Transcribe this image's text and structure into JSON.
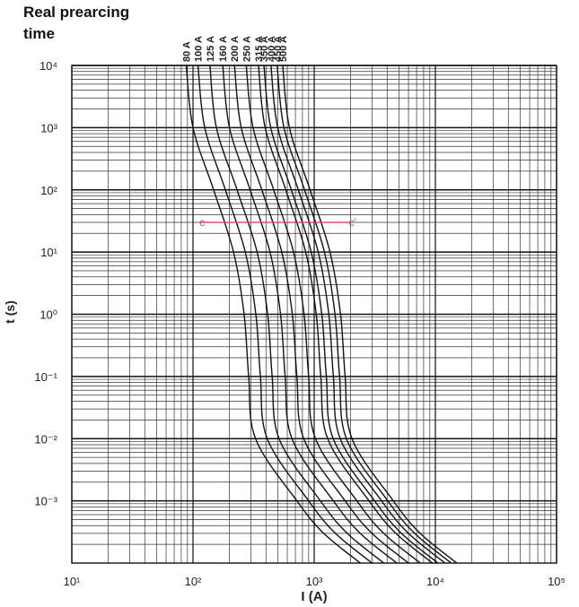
{
  "chart_data": {
    "type": "line",
    "title": "Real prearcing time",
    "xlabel": "I (A)",
    "ylabel": "t (s)",
    "xscale": "log",
    "yscale": "log",
    "grid": "minor",
    "xlim": [
      10,
      100000
    ],
    "xticks": [
      {
        "value": 10,
        "label": "10¹"
      },
      {
        "value": 100,
        "label": "10²"
      },
      {
        "value": 1000,
        "label": "10³"
      },
      {
        "value": 10000,
        "label": "10⁴"
      },
      {
        "value": 100000,
        "label": "10⁵"
      }
    ],
    "ylim": [
      0.0001,
      10000
    ],
    "yticks": [
      {
        "value": 0.001,
        "label": "10⁻³"
      },
      {
        "value": 0.01,
        "label": "10⁻²"
      },
      {
        "value": 0.1,
        "label": "10⁻¹"
      },
      {
        "value": 1,
        "label": "10⁰"
      },
      {
        "value": 10,
        "label": "10¹"
      },
      {
        "value": 100,
        "label": "10²"
      },
      {
        "value": 1000,
        "label": "10³"
      },
      {
        "value": 10000,
        "label": "10⁴"
      }
    ],
    "series": [
      {
        "name": "80 A",
        "color": "#111111",
        "x": [
          88,
          100,
          148,
          216,
          264,
          288,
          328,
          720,
          1200,
          2400
        ],
        "values": [
          10000,
          1000,
          100,
          10,
          1,
          0.1,
          0.01,
          0.001,
          0.0003,
          0.0001
        ]
      },
      {
        "name": "100 A",
        "color": "#111111",
        "x": [
          110,
          125,
          185,
          270,
          330,
          360,
          410,
          900,
          1500,
          3000
        ],
        "values": [
          10000,
          1000,
          100,
          10,
          1,
          0.1,
          0.01,
          0.001,
          0.0003,
          0.0001
        ]
      },
      {
        "name": "125 A",
        "color": "#111111",
        "x": [
          138,
          156,
          231,
          338,
          413,
          450,
          513,
          1125,
          1875,
          3750
        ],
        "values": [
          10000,
          1000,
          100,
          10,
          1,
          0.1,
          0.01,
          0.001,
          0.0003,
          0.0001
        ]
      },
      {
        "name": "160 A",
        "color": "#111111",
        "x": [
          176,
          200,
          296,
          432,
          528,
          576,
          656,
          1440,
          2400,
          4800
        ],
        "values": [
          10000,
          1000,
          100,
          10,
          1,
          0.1,
          0.01,
          0.001,
          0.0003,
          0.0001
        ]
      },
      {
        "name": "200 A",
        "color": "#111111",
        "x": [
          220,
          250,
          370,
          540,
          660,
          720,
          820,
          1800,
          3000,
          6000
        ],
        "values": [
          10000,
          1000,
          100,
          10,
          1,
          0.1,
          0.01,
          0.001,
          0.0003,
          0.0001
        ]
      },
      {
        "name": "250 A",
        "color": "#111111",
        "x": [
          275,
          313,
          463,
          675,
          825,
          900,
          1025,
          2250,
          3750,
          7500
        ],
        "values": [
          10000,
          1000,
          100,
          10,
          1,
          0.1,
          0.01,
          0.001,
          0.0003,
          0.0001
        ]
      },
      {
        "name": "315 A",
        "color": "#111111",
        "x": [
          347,
          394,
          583,
          851,
          1040,
          1134,
          1292,
          2835,
          4725,
          9450
        ],
        "values": [
          10000,
          1000,
          100,
          10,
          1,
          0.1,
          0.01,
          0.001,
          0.0003,
          0.0001
        ]
      },
      {
        "name": "350 A",
        "color": "#111111",
        "x": [
          385,
          438,
          648,
          945,
          1155,
          1260,
          1435,
          3150,
          5250,
          10500
        ],
        "values": [
          10000,
          1000,
          100,
          10,
          1,
          0.1,
          0.01,
          0.001,
          0.0003,
          0.0001
        ]
      },
      {
        "name": "400 A",
        "color": "#111111",
        "x": [
          440,
          500,
          740,
          1080,
          1320,
          1440,
          1640,
          3600,
          6000,
          12000
        ],
        "values": [
          10000,
          1000,
          100,
          10,
          1,
          0.1,
          0.01,
          0.001,
          0.0003,
          0.0001
        ]
      },
      {
        "name": "450 A",
        "color": "#111111",
        "x": [
          495,
          563,
          833,
          1215,
          1485,
          1620,
          1845,
          4050,
          6750,
          13500
        ],
        "values": [
          10000,
          1000,
          100,
          10,
          1,
          0.1,
          0.01,
          0.001,
          0.0003,
          0.0001
        ]
      },
      {
        "name": "500 A",
        "color": "#111111",
        "x": [
          550,
          625,
          925,
          1350,
          1650,
          1800,
          2050,
          4500,
          7500,
          15000
        ],
        "values": [
          10000,
          1000,
          100,
          10,
          1,
          0.1,
          0.01,
          0.001,
          0.0003,
          0.0001
        ]
      }
    ],
    "annotation": {
      "labels": [
        "c",
        "c'"
      ],
      "x": [
        113,
        2000
      ],
      "values": [
        30,
        30
      ],
      "color": "#d0406a"
    }
  }
}
